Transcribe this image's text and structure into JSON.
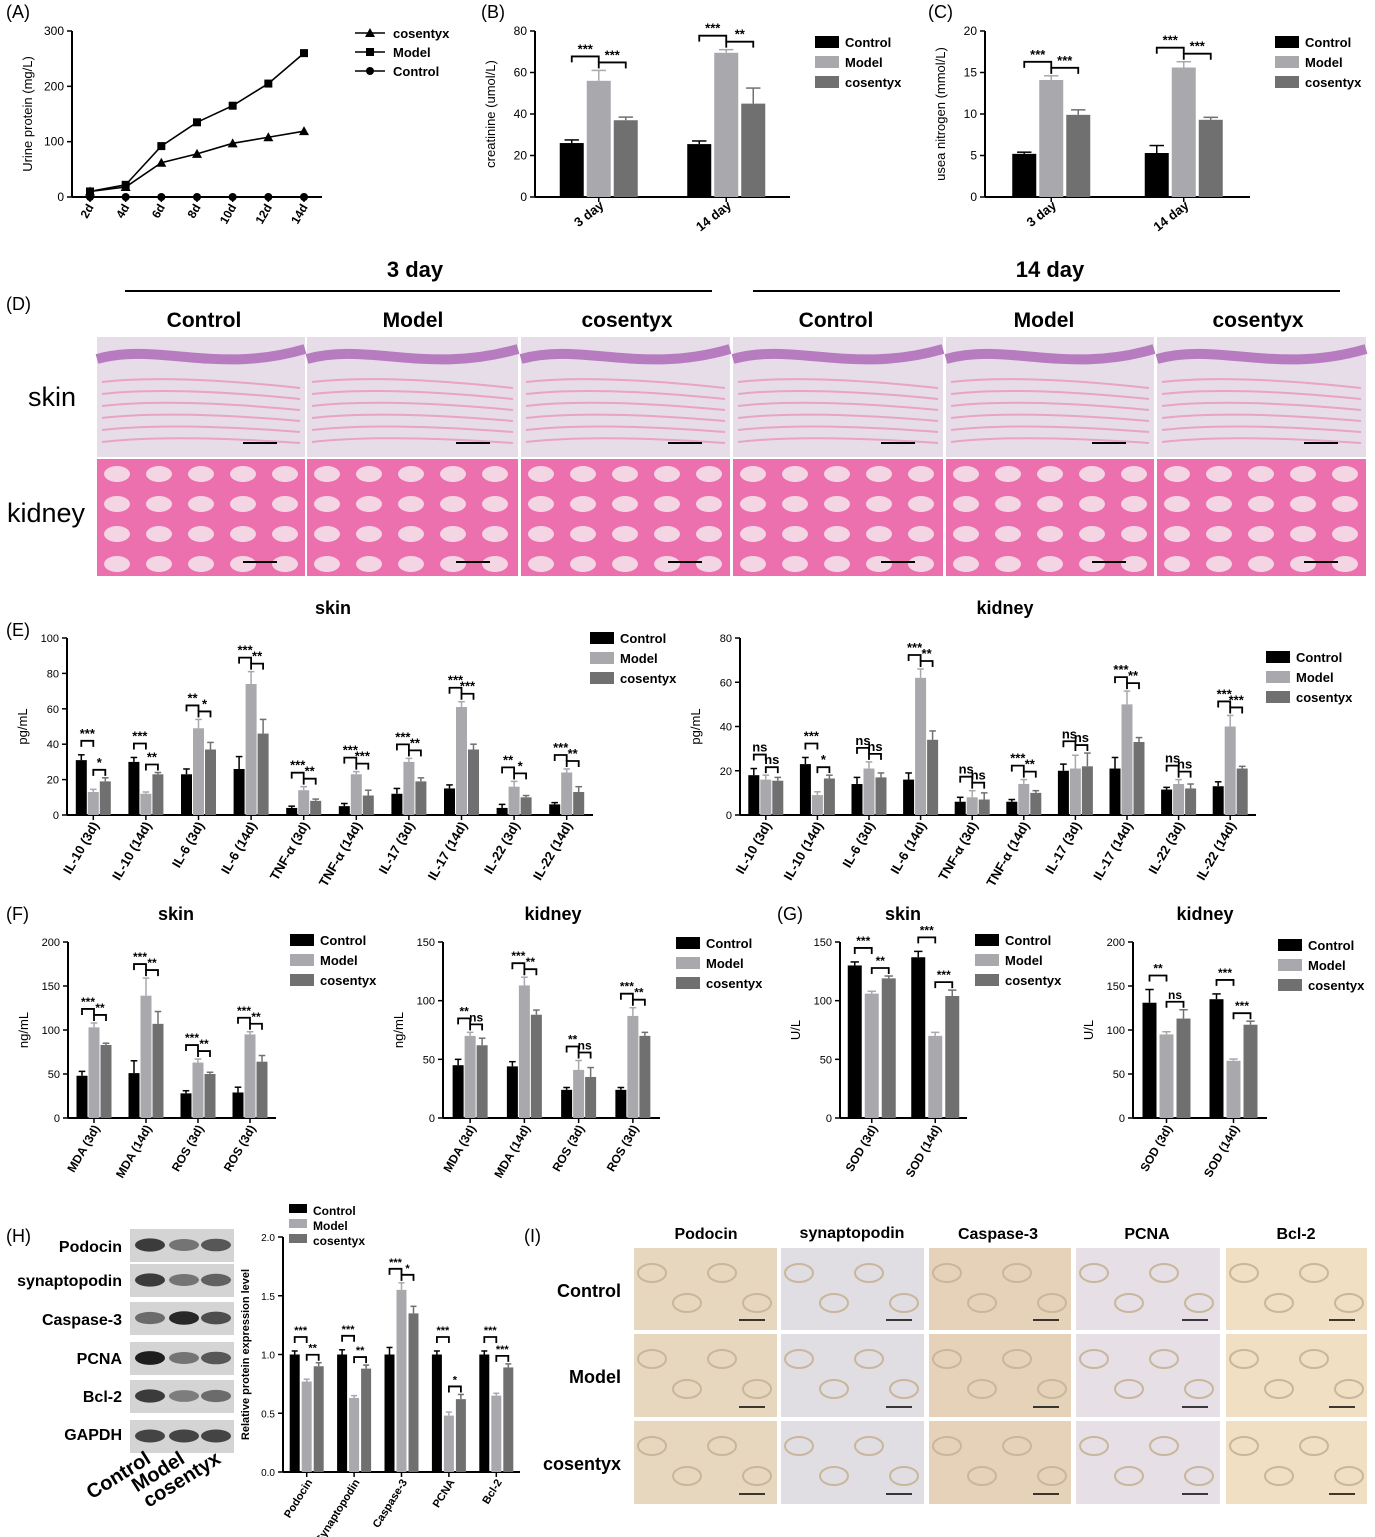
{
  "colors": {
    "control": "#000000",
    "model": "#a8a8ad",
    "cosentyx": "#707070"
  },
  "section_titles": {
    "day3": "3 day",
    "day14": "14 day"
  },
  "histology": {
    "panel": "(D)",
    "columns": [
      "Control",
      "Model",
      "cosentyx",
      "Control",
      "Model",
      "cosentyx"
    ],
    "rows": [
      "skin",
      "kidney"
    ]
  },
  "western_blot": {
    "panel": "(H)",
    "bands": [
      "Podocin",
      "synaptopodin",
      "Caspase-3",
      "PCNA",
      "Bcl-2",
      "GAPDH"
    ],
    "lanes": [
      "Control",
      "Model",
      "cosentyx"
    ]
  },
  "ihc": {
    "panel": "(I)",
    "columns": [
      "Podocin",
      "synaptopodin",
      "Caspase-3",
      "PCNA",
      "Bcl-2"
    ],
    "rows": [
      "Control",
      "Model",
      "cosentyx"
    ]
  },
  "chart_data": [
    {
      "id": "A",
      "panel": "(A)",
      "type": "line",
      "ylabel": "Urine protein (mg/L)",
      "ylim": [
        0,
        300
      ],
      "yticks": [
        0,
        100,
        200,
        300
      ],
      "categories": [
        "2d",
        "4d",
        "6d",
        "8d",
        "10d",
        "12d",
        "14d"
      ],
      "legend_position": "top-right",
      "series": [
        {
          "name": "cosentyx",
          "marker": "triangle",
          "values": [
            10,
            18,
            62,
            78,
            97,
            108,
            119
          ]
        },
        {
          "name": "Model",
          "marker": "square",
          "values": [
            10,
            22,
            92,
            135,
            165,
            205,
            260
          ]
        },
        {
          "name": "Control",
          "marker": "circle",
          "values": [
            0,
            0,
            0,
            0,
            0,
            0,
            0
          ]
        }
      ]
    },
    {
      "id": "B",
      "panel": "(B)",
      "type": "bar",
      "ylabel": "creatinine (umol/L)",
      "ylim": [
        0,
        80
      ],
      "yticks": [
        0,
        20,
        40,
        60,
        80
      ],
      "categories": [
        "3 day",
        "14 day"
      ],
      "legend_position": "top-right",
      "series": [
        {
          "name": "Control",
          "values": [
            26,
            25.5
          ],
          "errors": [
            1.5,
            1.5
          ]
        },
        {
          "name": "Model",
          "values": [
            56,
            69.5
          ],
          "errors": [
            5,
            1.5
          ]
        },
        {
          "name": "cosentyx",
          "values": [
            37,
            45
          ],
          "errors": [
            1.5,
            7.5
          ]
        }
      ],
      "annotations": [
        [
          "***",
          "***"
        ],
        [
          "***",
          "**"
        ]
      ]
    },
    {
      "id": "C",
      "panel": "(C)",
      "type": "bar",
      "ylabel": "usea nitrogen (mmol/L)",
      "ylim": [
        0,
        20
      ],
      "yticks": [
        0,
        5,
        10,
        15,
        20
      ],
      "categories": [
        "3 day",
        "14 day"
      ],
      "legend_position": "top-right",
      "series": [
        {
          "name": "Control",
          "values": [
            5.2,
            5.3
          ],
          "errors": [
            0.2,
            0.9
          ]
        },
        {
          "name": "Model",
          "values": [
            14.1,
            15.6
          ],
          "errors": [
            0.5,
            0.7
          ]
        },
        {
          "name": "cosentyx",
          "values": [
            9.9,
            9.3
          ],
          "errors": [
            0.6,
            0.3
          ]
        }
      ],
      "annotations": [
        [
          "***",
          "***"
        ],
        [
          "***",
          "***"
        ]
      ]
    },
    {
      "id": "E1",
      "panel": "(E)",
      "title": "skin",
      "type": "bar",
      "ylabel": "pg/mL",
      "ylim": [
        0,
        100
      ],
      "yticks": [
        0,
        20,
        40,
        60,
        80,
        100
      ],
      "categories": [
        "IL-10 (3d)",
        "IL-10 (14d)",
        "IL-6 (3d)",
        "IL-6 (14d)",
        "TNF-α (3d)",
        "TNF-α (14d)",
        "IL-17 (3d)",
        "IL-17 (14d)",
        "IL-22 (3d)",
        "IL-22 (14d)"
      ],
      "legend_position": "top-right",
      "series": [
        {
          "name": "Control",
          "values": [
            31,
            30,
            23,
            26,
            4,
            5,
            12,
            15,
            4,
            6
          ],
          "errors": [
            3,
            2.5,
            3,
            7,
            1,
            1.5,
            3,
            2,
            2,
            1
          ]
        },
        {
          "name": "Model",
          "values": [
            13,
            12,
            49,
            74,
            14,
            23,
            30,
            61,
            16,
            24
          ],
          "errors": [
            1.5,
            1,
            5,
            7,
            2,
            1.5,
            2,
            3,
            3,
            2
          ]
        },
        {
          "name": "cosentyx",
          "values": [
            19,
            23,
            37,
            46,
            8,
            11,
            19,
            37,
            10,
            13
          ],
          "errors": [
            2,
            1,
            4,
            8,
            1,
            3,
            2,
            3,
            1,
            3
          ]
        }
      ],
      "annotations": [
        [
          "***",
          "*"
        ],
        [
          "***",
          "**"
        ],
        [
          "**",
          "*"
        ],
        [
          "***",
          "**"
        ],
        [
          "***",
          "**"
        ],
        [
          "***",
          "***"
        ],
        [
          "***",
          "**"
        ],
        [
          "***",
          "***"
        ],
        [
          "**",
          "*"
        ],
        [
          "***",
          "**"
        ]
      ]
    },
    {
      "id": "E2",
      "title": "kidney",
      "type": "bar",
      "ylabel": "pg/mL",
      "ylim": [
        0,
        80
      ],
      "yticks": [
        0,
        20,
        40,
        60,
        80
      ],
      "categories": [
        "IL-10 (3d)",
        "IL-10 (14d)",
        "IL-6 (3d)",
        "IL-6 (14d)",
        "TNF-α (3d)",
        "TNF-α (14d)",
        "IL-17 (3d)",
        "IL-17 (14d)",
        "IL-22 (3d)",
        "IL-22 (14d)"
      ],
      "legend_position": "top-right",
      "series": [
        {
          "name": "Control",
          "values": [
            18,
            23,
            14,
            16,
            6,
            6,
            20,
            21,
            11.5,
            13
          ],
          "errors": [
            3,
            3,
            3,
            3,
            2,
            1,
            3,
            5,
            1,
            2
          ]
        },
        {
          "name": "Model",
          "values": [
            16,
            9,
            21,
            62,
            8,
            14,
            21,
            50,
            14,
            40
          ],
          "errors": [
            2,
            1.5,
            3,
            4,
            3,
            2,
            6,
            6,
            2,
            5
          ]
        },
        {
          "name": "cosentyx",
          "values": [
            15.5,
            16.5,
            17,
            34,
            7,
            10,
            22,
            33,
            12,
            21
          ],
          "errors": [
            1.5,
            1.5,
            2,
            4,
            3,
            1,
            6,
            2,
            2,
            1
          ]
        }
      ],
      "annotations": [
        [
          "ns",
          "ns"
        ],
        [
          "***",
          "*"
        ],
        [
          "ns",
          "ns"
        ],
        [
          "***",
          "**"
        ],
        [
          "ns",
          "ns"
        ],
        [
          "***",
          "**"
        ],
        [
          "ns",
          "ns"
        ],
        [
          "***",
          "**"
        ],
        [
          "ns",
          "ns"
        ],
        [
          "***",
          "***"
        ]
      ]
    },
    {
      "id": "F1",
      "panel": "(F)",
      "title": "skin",
      "type": "bar",
      "ylabel": "ng/mL",
      "ylim": [
        0,
        200
      ],
      "yticks": [
        0,
        50,
        100,
        150,
        200
      ],
      "categories": [
        "MDA (3d)",
        "MDA (14d)",
        "ROS (3d)",
        "ROS (3d)"
      ],
      "legend_position": "top-right",
      "series": [
        {
          "name": "Control",
          "values": [
            48,
            51,
            28,
            29
          ],
          "errors": [
            5,
            14,
            3,
            6
          ]
        },
        {
          "name": "Model",
          "values": [
            103,
            139,
            63,
            95
          ],
          "errors": [
            5,
            20,
            4,
            3
          ]
        },
        {
          "name": "cosentyx",
          "values": [
            83,
            107,
            50,
            64
          ],
          "errors": [
            2,
            14,
            2,
            7
          ]
        }
      ],
      "annotations": [
        [
          "***",
          "**"
        ],
        [
          "***",
          "**"
        ],
        [
          "***",
          "**"
        ],
        [
          "***",
          "**"
        ]
      ]
    },
    {
      "id": "F2",
      "title": "kidney",
      "type": "bar",
      "ylabel": "ng/mL",
      "ylim": [
        0,
        150
      ],
      "yticks": [
        0,
        50,
        100,
        150
      ],
      "categories": [
        "MDA (3d)",
        "MDA (14d)",
        "ROS (3d)",
        "ROS (3d)"
      ],
      "legend_position": "top-right",
      "series": [
        {
          "name": "Control",
          "values": [
            45,
            44,
            24,
            24
          ],
          "errors": [
            5,
            4,
            2,
            2
          ]
        },
        {
          "name": "Model",
          "values": [
            70,
            113,
            41,
            87
          ],
          "errors": [
            3,
            7,
            8,
            7
          ]
        },
        {
          "name": "cosentyx",
          "values": [
            62,
            88,
            35,
            70
          ],
          "errors": [
            6,
            4,
            8,
            3
          ]
        }
      ],
      "annotations": [
        [
          "**",
          "ns"
        ],
        [
          "***",
          "**"
        ],
        [
          "**",
          "ns"
        ],
        [
          "***",
          "**"
        ]
      ]
    },
    {
      "id": "G1",
      "panel": "(G)",
      "title": "skin",
      "type": "bar",
      "ylabel": "U/L",
      "ylim": [
        0,
        150
      ],
      "yticks": [
        0,
        50,
        100,
        150
      ],
      "categories": [
        "SOD (3d)",
        "SOD (14d)"
      ],
      "legend_position": "top-right",
      "series": [
        {
          "name": "Control",
          "values": [
            130,
            137
          ],
          "errors": [
            3,
            5
          ]
        },
        {
          "name": "Model",
          "values": [
            106,
            70
          ],
          "errors": [
            2,
            3
          ]
        },
        {
          "name": "cosentyx",
          "values": [
            119,
            104
          ],
          "errors": [
            2,
            5
          ]
        }
      ],
      "annotations": [
        [
          "***",
          "**"
        ],
        [
          "***",
          "***"
        ]
      ]
    },
    {
      "id": "G2",
      "title": "kidney",
      "type": "bar",
      "ylabel": "U/L",
      "ylim": [
        0,
        200
      ],
      "yticks": [
        0,
        50,
        100,
        150,
        200
      ],
      "categories": [
        "SOD (3d)",
        "SOD (14d)"
      ],
      "legend_position": "top-right",
      "series": [
        {
          "name": "Control",
          "values": [
            131,
            135
          ],
          "errors": [
            15,
            6
          ]
        },
        {
          "name": "Model",
          "values": [
            95,
            65
          ],
          "errors": [
            3,
            2
          ]
        },
        {
          "name": "cosentyx",
          "values": [
            113,
            106
          ],
          "errors": [
            10,
            4
          ]
        }
      ],
      "annotations": [
        [
          "**",
          "ns"
        ],
        [
          "***",
          "***"
        ]
      ]
    },
    {
      "id": "H",
      "type": "bar",
      "ylabel": "Relative  protein expression  level",
      "ylim": [
        0,
        2.0
      ],
      "yticks": [
        0.0,
        0.5,
        1.0,
        1.5,
        2.0
      ],
      "categories": [
        "Podocin",
        "Synaptopodin",
        "Caspase-3",
        "PCNA",
        "Bcl-2"
      ],
      "legend_position": "top-left",
      "series": [
        {
          "name": "Control",
          "values": [
            1.0,
            1.0,
            1.0,
            1.0,
            1.0
          ],
          "errors": [
            0.03,
            0.04,
            0.06,
            0.03,
            0.03
          ]
        },
        {
          "name": "Model",
          "values": [
            0.77,
            0.63,
            1.55,
            0.48,
            0.65
          ],
          "errors": [
            0.02,
            0.02,
            0.06,
            0.03,
            0.02
          ]
        },
        {
          "name": "cosentyx",
          "values": [
            0.9,
            0.88,
            1.35,
            0.62,
            0.89
          ],
          "errors": [
            0.03,
            0.03,
            0.06,
            0.04,
            0.03
          ]
        }
      ],
      "annotations": [
        [
          "***",
          "**"
        ],
        [
          "***",
          "**"
        ],
        [
          "***",
          "*"
        ],
        [
          "***",
          "*"
        ],
        [
          "***",
          "***"
        ]
      ]
    }
  ]
}
